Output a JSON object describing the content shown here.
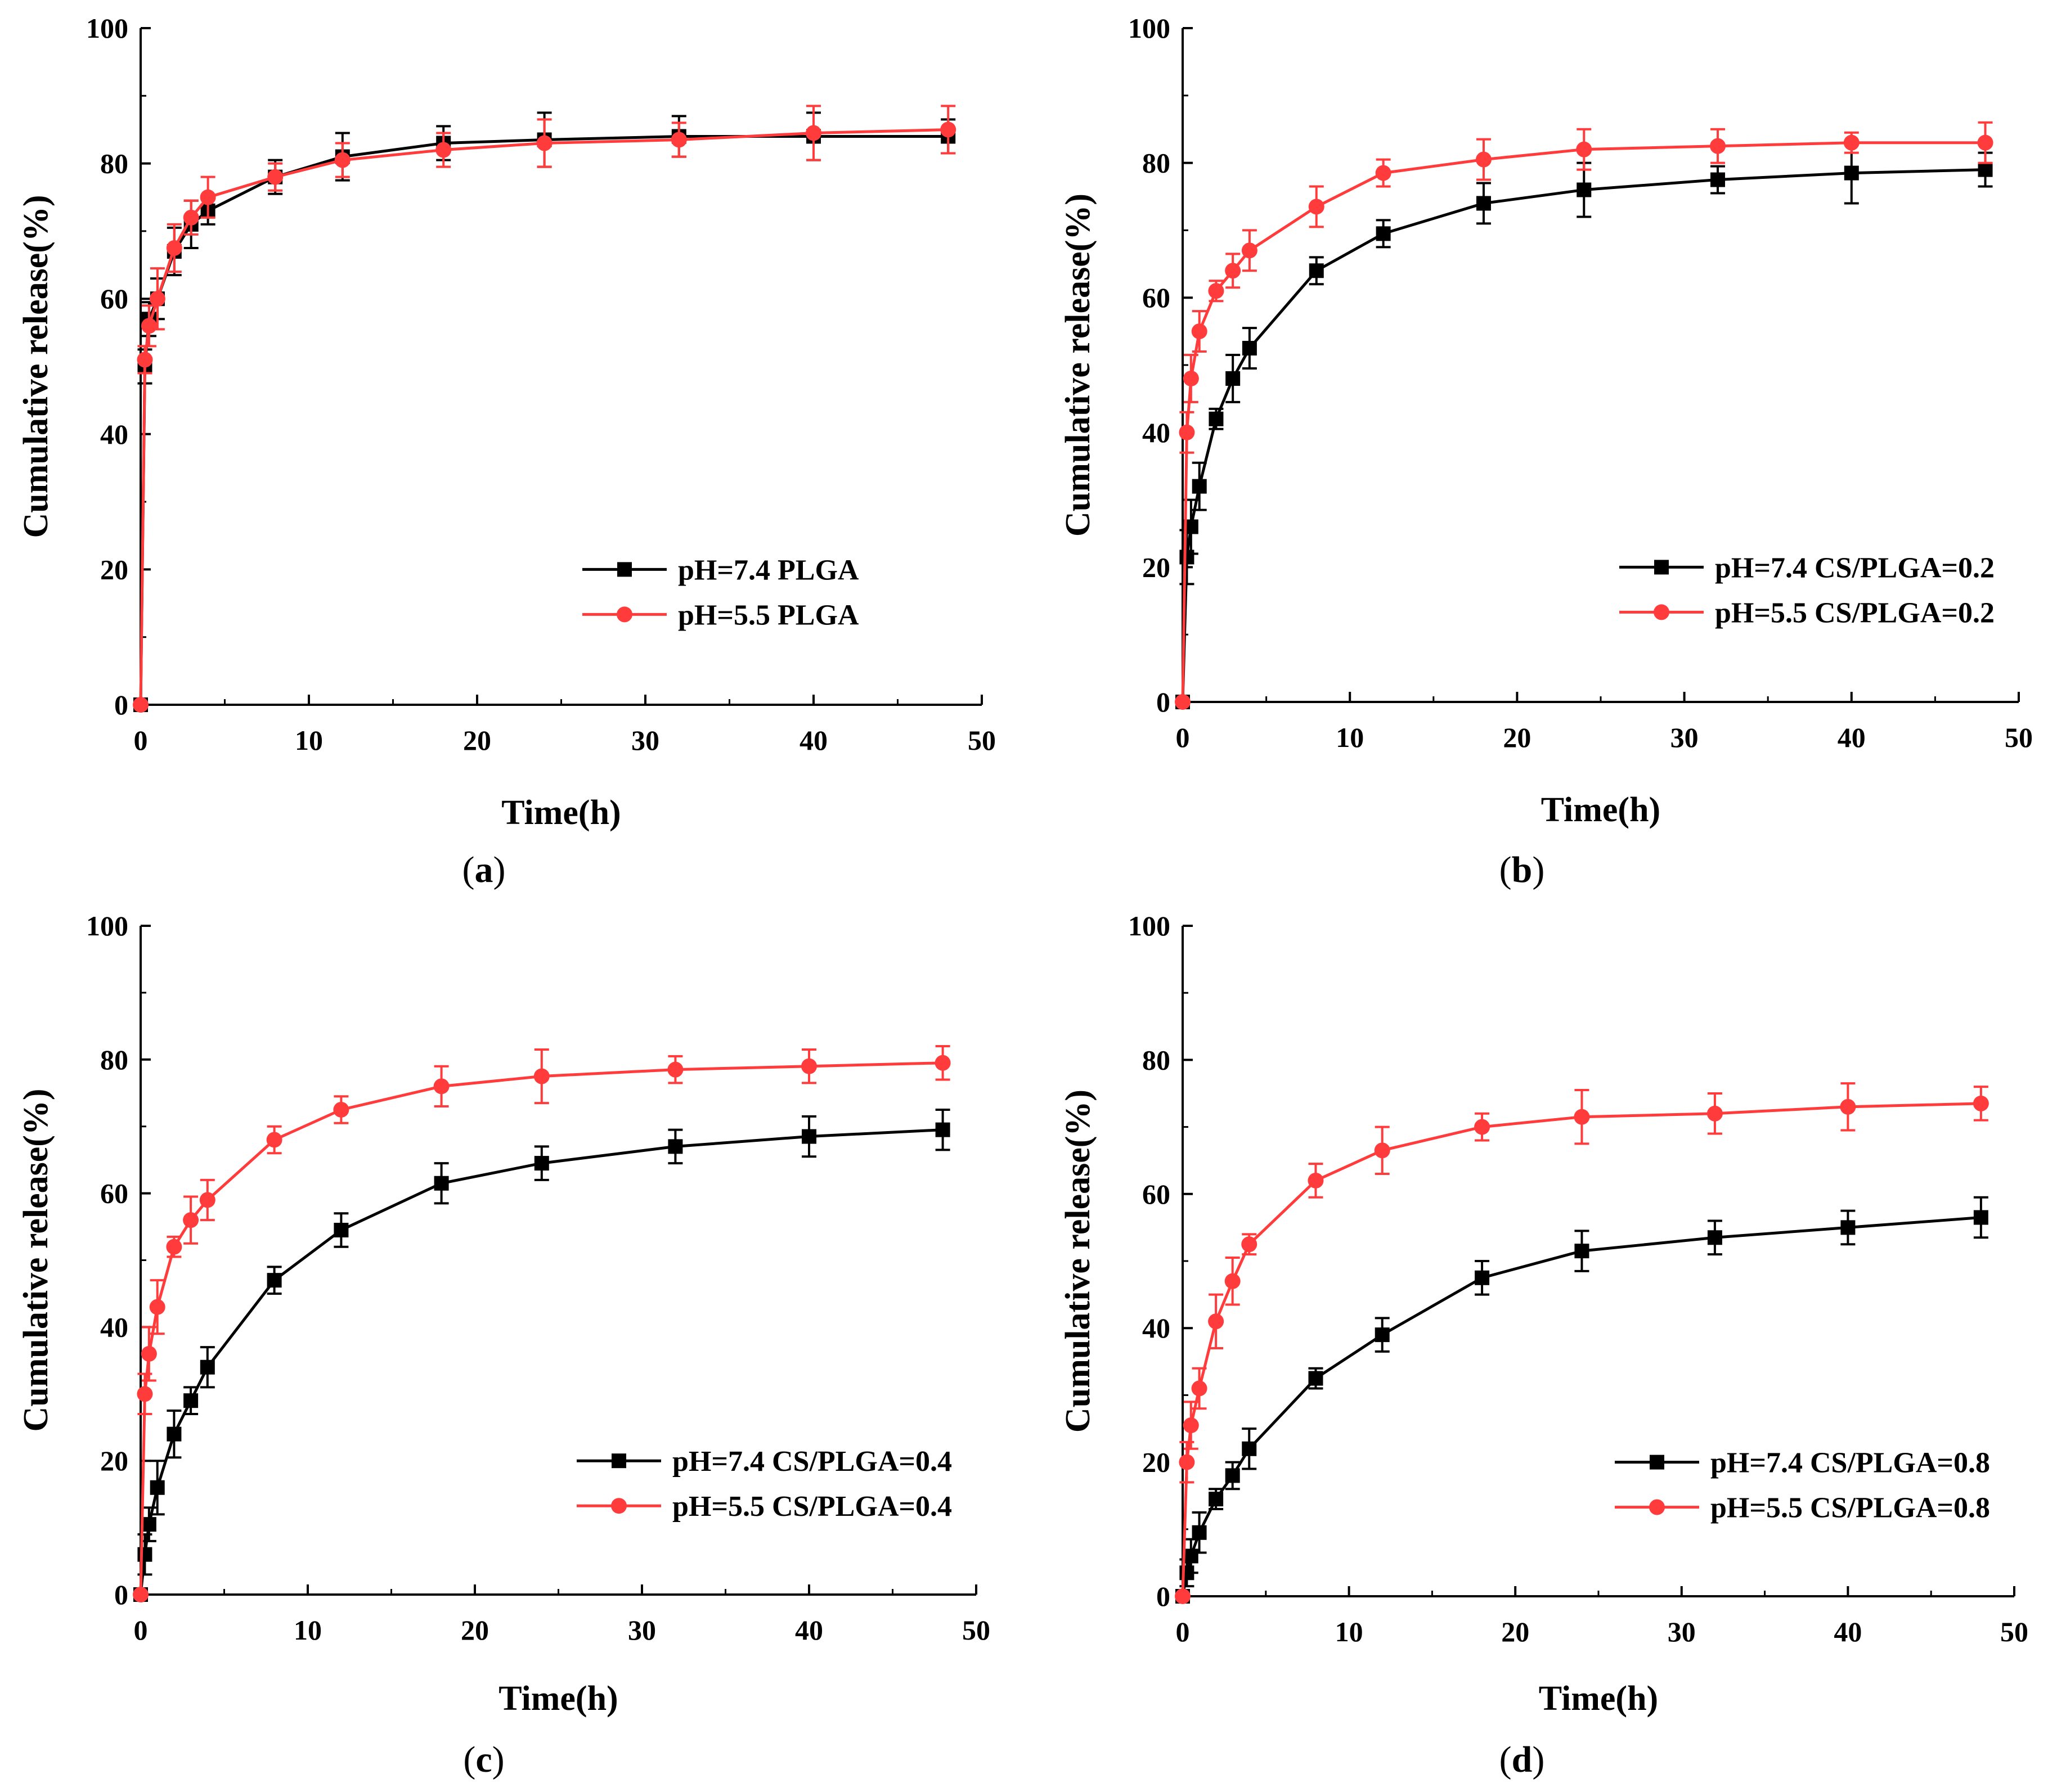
{
  "figure": {
    "panels_order": [
      "a",
      "b",
      "c",
      "d"
    ]
  },
  "colors": {
    "series_74": "#000000",
    "series_55": "#ff3b3b",
    "axis": "#000000",
    "background": "#ffffff"
  },
  "markers": {
    "series_74": "square",
    "series_55": "circle"
  },
  "chart_data": [
    {
      "panel": "a",
      "panel_label_open": "(",
      "panel_label_letter": "a",
      "panel_label_close": ")",
      "type": "line",
      "title": "",
      "xlabel": "Time(h)",
      "ylabel": "Cumulative release(%)",
      "xlim": [
        0,
        50
      ],
      "ylim": [
        0,
        100
      ],
      "xticks": [
        0,
        10,
        20,
        30,
        40,
        50
      ],
      "yticks": [
        0,
        20,
        40,
        60,
        80,
        100
      ],
      "grid": false,
      "legend_position": "lower-right",
      "x": [
        0,
        0.25,
        0.5,
        1,
        2,
        3,
        4,
        8,
        12,
        18,
        24,
        32,
        40,
        48
      ],
      "series": [
        {
          "name": "pH=7.4 PLGA",
          "key": "series_74",
          "values": [
            0,
            50,
            57,
            60,
            67,
            71,
            73,
            78,
            81,
            83,
            83.5,
            84,
            84,
            84
          ],
          "errors": [
            0,
            2.5,
            2.5,
            3,
            3.5,
            3.5,
            2,
            2.5,
            3.5,
            2.5,
            4,
            3,
            3.5,
            2.5
          ]
        },
        {
          "name": "pH=5.5 PLGA",
          "key": "series_55",
          "values": [
            0,
            51,
            56,
            60,
            67.5,
            72,
            75,
            78,
            80.5,
            82,
            83,
            83.5,
            84.5,
            85
          ],
          "errors": [
            0,
            2,
            3,
            4.5,
            3.5,
            2.5,
            3,
            2,
            2.5,
            2.5,
            3.5,
            2.5,
            4,
            3.5
          ]
        }
      ]
    },
    {
      "panel": "b",
      "panel_label_open": "(",
      "panel_label_letter": "b",
      "panel_label_close": ")",
      "type": "line",
      "title": "",
      "xlabel": "Time(h)",
      "ylabel": "Cumulative release(%)",
      "xlim": [
        0,
        50
      ],
      "ylim": [
        0,
        100
      ],
      "xticks": [
        0,
        10,
        20,
        30,
        40,
        50
      ],
      "yticks": [
        0,
        20,
        40,
        60,
        80,
        100
      ],
      "grid": false,
      "legend_position": "lower-right",
      "x": [
        0,
        0.25,
        0.5,
        1,
        2,
        3,
        4,
        8,
        12,
        18,
        24,
        32,
        40,
        48
      ],
      "series": [
        {
          "name": "pH=7.4 CS/PLGA=0.2",
          "key": "series_74",
          "values": [
            0,
            21.5,
            26,
            32,
            42,
            48,
            52.5,
            64,
            69.5,
            74,
            76,
            77.5,
            78.5,
            79
          ],
          "errors": [
            0,
            4,
            4,
            3.5,
            1.5,
            3.5,
            3,
            2,
            2,
            3,
            4,
            2,
            4.5,
            2.5
          ]
        },
        {
          "name": "pH=5.5 CS/PLGA=0.2",
          "key": "series_55",
          "values": [
            0,
            40,
            48,
            55,
            61,
            64,
            67,
            73.5,
            78.5,
            80.5,
            82,
            82.5,
            83,
            83
          ],
          "errors": [
            0,
            3,
            3.5,
            3,
            1.5,
            2.5,
            3,
            3,
            2,
            3,
            3,
            2.5,
            1.5,
            3
          ]
        }
      ]
    },
    {
      "panel": "c",
      "panel_label_open": "(",
      "panel_label_letter": "c",
      "panel_label_close": ")",
      "type": "line",
      "title": "",
      "xlabel": "Time(h)",
      "ylabel": "Cumulative release(%)",
      "xlim": [
        0,
        50
      ],
      "ylim": [
        0,
        100
      ],
      "xticks": [
        0,
        10,
        20,
        30,
        40,
        50
      ],
      "yticks": [
        0,
        20,
        40,
        60,
        80,
        100
      ],
      "grid": false,
      "legend_position": "lower-right",
      "x": [
        0,
        0.25,
        0.5,
        1,
        2,
        3,
        4,
        8,
        12,
        18,
        24,
        32,
        40,
        48
      ],
      "series": [
        {
          "name": "pH=7.4 CS/PLGA=0.4",
          "key": "series_74",
          "values": [
            0,
            6,
            10.5,
            16,
            24,
            29,
            34,
            47,
            54.5,
            61.5,
            64.5,
            67,
            68.5,
            69.5
          ],
          "errors": [
            0,
            3,
            2.5,
            4,
            3.5,
            2,
            3,
            2,
            2.5,
            3,
            2.5,
            2.5,
            3,
            3
          ]
        },
        {
          "name": "pH=5.5 CS/PLGA=0.4",
          "key": "series_55",
          "values": [
            0,
            30,
            36,
            43,
            52,
            56,
            59,
            68,
            72.5,
            76,
            77.5,
            78.5,
            79,
            79.5
          ],
          "errors": [
            0,
            3,
            4,
            4,
            1.5,
            3.5,
            3,
            2,
            2,
            3,
            4,
            2,
            2.5,
            2.5
          ]
        }
      ]
    },
    {
      "panel": "d",
      "panel_label_open": "(",
      "panel_label_letter": "d",
      "panel_label_close": ")",
      "type": "line",
      "title": "",
      "xlabel": "Time(h)",
      "ylabel": "Cumulative release(%)",
      "xlim": [
        0,
        50
      ],
      "ylim": [
        0,
        100
      ],
      "xticks": [
        0,
        10,
        20,
        30,
        40,
        50
      ],
      "yticks": [
        0,
        20,
        40,
        60,
        80,
        100
      ],
      "grid": false,
      "legend_position": "lower-right",
      "x": [
        0,
        0.25,
        0.5,
        1,
        2,
        3,
        4,
        8,
        12,
        18,
        24,
        32,
        40,
        48
      ],
      "series": [
        {
          "name": "pH=7.4 CS/PLGA=0.8",
          "key": "series_74",
          "values": [
            0,
            3.5,
            6,
            9.5,
            14.5,
            18,
            22,
            32.5,
            39,
            47.5,
            51.5,
            53.5,
            55,
            56.5
          ],
          "errors": [
            0,
            2,
            2.5,
            3,
            1.5,
            2,
            3,
            1.5,
            2.5,
            2.5,
            3,
            2.5,
            2.5,
            3
          ]
        },
        {
          "name": "pH=5.5 CS/PLGA=0.8",
          "key": "series_55",
          "values": [
            0,
            20,
            25.5,
            31,
            41,
            47,
            52.5,
            62,
            66.5,
            70,
            71.5,
            72,
            73,
            73.5
          ],
          "errors": [
            0,
            3,
            3.5,
            3,
            4,
            3.5,
            1.5,
            2.5,
            3.5,
            2,
            4,
            3,
            3.5,
            2.5
          ]
        }
      ]
    }
  ]
}
